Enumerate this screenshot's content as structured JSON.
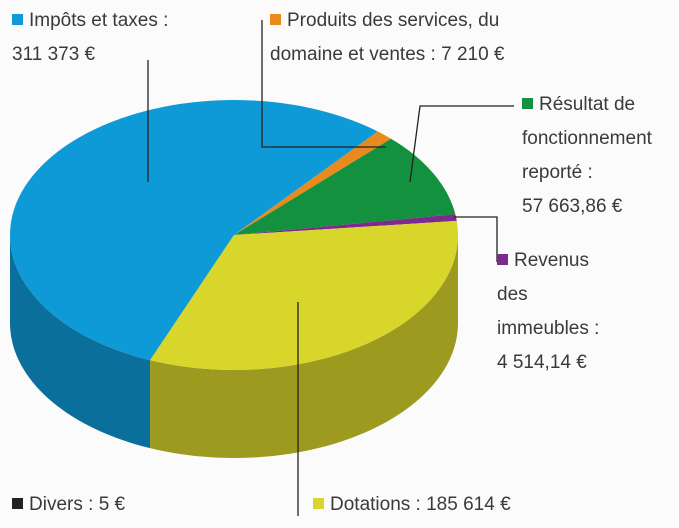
{
  "chart_data": {
    "type": "pie3d",
    "series": [
      {
        "name": "Impôts et taxes :",
        "color": "#0e9ad7",
        "values": [
          311373
        ],
        "value_labels": [
          "311 373 €"
        ]
      },
      {
        "name": "Produits des services, du domaine et ventes :",
        "color": "#e88a1e",
        "values": [
          7210
        ],
        "value_labels": [
          "7 210 €"
        ]
      },
      {
        "name": "Résultat de fonctionnement reporté :",
        "color": "#14913f",
        "values": [
          57663.86
        ],
        "value_labels": [
          "57 663,86 €"
        ]
      },
      {
        "name": "Revenus des immeubles :",
        "color": "#7d2a8e",
        "values": [
          4514.14
        ],
        "value_labels": [
          "4 514,14 €"
        ]
      },
      {
        "name": "Dotations :",
        "color": "#d8d62b",
        "values": [
          185614
        ],
        "value_labels": [
          "185 614 €"
        ]
      },
      {
        "name": "Divers :",
        "color": "#222222",
        "values": [
          5
        ],
        "value_labels": [
          "5 €"
        ]
      }
    ]
  }
}
